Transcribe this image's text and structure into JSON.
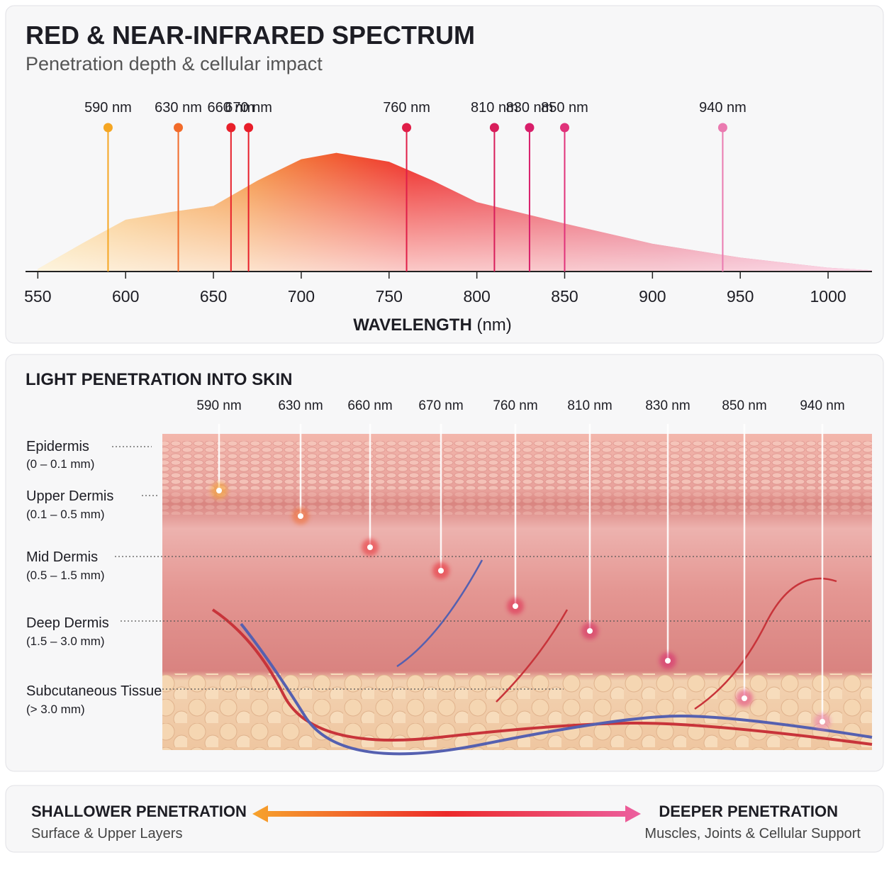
{
  "chart_data": {
    "type": "area",
    "title": "RED & NEAR-INFRARED SPECTRUM",
    "subtitle": "Penetration depth & cellular impact",
    "x_label": "WAVELENGTH",
    "x_unit": "(nm)",
    "x": [
      550,
      575,
      600,
      625,
      650,
      675,
      700,
      720,
      750,
      775,
      800,
      850,
      900,
      950,
      1000,
      1025
    ],
    "values": [
      0.02,
      0.22,
      0.41,
      0.47,
      0.52,
      0.72,
      0.89,
      0.94,
      0.87,
      0.72,
      0.55,
      0.38,
      0.22,
      0.11,
      0.03,
      0.01
    ],
    "xlim": [
      543,
      1025
    ],
    "ylim": [
      0,
      1
    ],
    "xticks": [
      550,
      600,
      650,
      700,
      750,
      800,
      850,
      900,
      950,
      1000
    ],
    "markers": [
      {
        "value": 590,
        "label": "590 nm",
        "color": "#f5a623"
      },
      {
        "value": 630,
        "label": "630 nm",
        "color": "#f26b2a"
      },
      {
        "value": 660,
        "label": "660 nm",
        "color": "#e8202a"
      },
      {
        "value": 670,
        "label": "670 nm",
        "color": "#e81e2a"
      },
      {
        "value": 760,
        "label": "760 nm",
        "color": "#e01e48"
      },
      {
        "value": 810,
        "label": "810 nm",
        "color": "#d81e5b"
      },
      {
        "value": 830,
        "label": "830 nm",
        "color": "#d81e6a"
      },
      {
        "value": 850,
        "label": "850 nm",
        "color": "#e0327a"
      },
      {
        "value": 940,
        "label": "940 nm",
        "color": "#ea7ab0"
      }
    ]
  },
  "skin": {
    "title": "LIGHT PENETRATION INTO SKIN",
    "wavelengths": [
      "590 nm",
      "630 nm",
      "660 nm",
      "670 nm",
      "760 nm",
      "810 nm",
      "830 nm",
      "850 nm",
      "940 nm"
    ],
    "layers": [
      {
        "name": "Epidermis",
        "range": "(0 – 0.1 mm)"
      },
      {
        "name": "Upper Dermis",
        "range": "(0.1 – 0.5 mm)"
      },
      {
        "name": "Mid Dermis",
        "range": "(0.5 – 1.5 mm)"
      },
      {
        "name": "Deep Dermis",
        "range": "(1.5 – 3.0 mm)"
      },
      {
        "name": "Subcutaneous Tissue",
        "range": "(> 3.0 mm)"
      }
    ]
  },
  "footer": {
    "left": {
      "title": "SHALLOWER PENETRATION",
      "subtitle": "Surface & Upper Layers"
    },
    "right": {
      "title": "DEEPER PENETRATION",
      "subtitle": "Muscles, Joints & Cellular Support"
    }
  }
}
